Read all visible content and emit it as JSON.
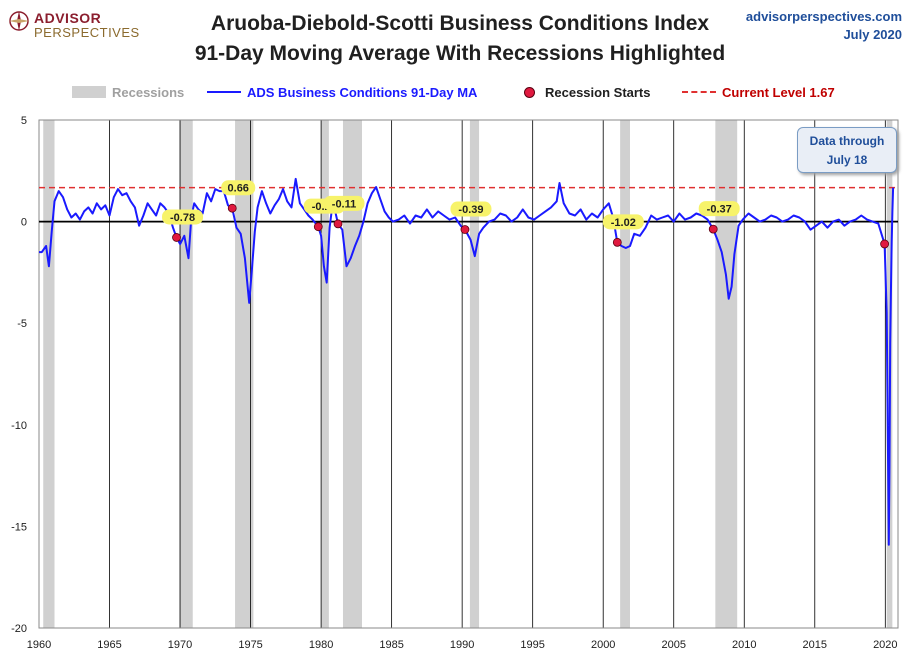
{
  "header": {
    "logo_line1": "ADVISOR",
    "logo_line2": "PERSPECTIVES",
    "title_line1": "Aruoba-Diebold-Scotti Business Conditions Index",
    "title_line2": "91-Day Moving Average With Recessions Highlighted",
    "site": "advisorperspectives.com",
    "date": "July 2020"
  },
  "legend": {
    "recessions": "Recessions",
    "series": "ADS Business Conditions 91-Day MA",
    "starts": "Recession Starts",
    "current": "Current Level 1.67"
  },
  "callout": {
    "line1": "Data through",
    "line2": "July 18"
  },
  "colors": {
    "series": "#1a1aff",
    "recession": "#d0d0d0",
    "current": "#e03030",
    "marker": "#e0193f",
    "label_bg": "#f7f36a"
  },
  "chart_data": {
    "type": "line",
    "xlim": [
      1960,
      2020.9
    ],
    "ylim": [
      -20,
      5
    ],
    "x_ticks": [
      1960,
      1965,
      1970,
      1975,
      1980,
      1985,
      1990,
      1995,
      2000,
      2005,
      2010,
      2015,
      2020
    ],
    "y_ticks": [
      5,
      0,
      -5,
      -10,
      -15,
      -20
    ],
    "current_level": 1.67,
    "recessions": [
      [
        1960.3,
        1961.1
      ],
      [
        1969.95,
        1970.9
      ],
      [
        1973.9,
        1975.2
      ],
      [
        1980.0,
        1980.55
      ],
      [
        1981.55,
        1982.9
      ],
      [
        1990.55,
        1991.2
      ],
      [
        2001.2,
        2001.9
      ],
      [
        2007.95,
        2009.5
      ],
      [
        2020.1,
        2020.5
      ]
    ],
    "recession_starts": [
      {
        "x": 1969.75,
        "y": -0.78,
        "label": "-0.78"
      },
      {
        "x": 1973.7,
        "y": 0.66,
        "label": "0.66"
      },
      {
        "x": 1979.8,
        "y": -0.25,
        "label": "-0.25"
      },
      {
        "x": 1981.2,
        "y": -0.11,
        "label": "-0.11"
      },
      {
        "x": 1990.2,
        "y": -0.39,
        "label": "-0.39"
      },
      {
        "x": 2001.0,
        "y": -1.02,
        "label": "-1.02"
      },
      {
        "x": 2007.8,
        "y": -0.37,
        "label": "-0.37"
      },
      {
        "x": 2019.95,
        "y": -1.1,
        "label": ""
      }
    ],
    "series": [
      {
        "name": "ADS Business Conditions 91-Day MA",
        "x": [
          1960.0,
          1960.2,
          1960.5,
          1960.7,
          1960.9,
          1961.1,
          1961.4,
          1961.7,
          1962.0,
          1962.3,
          1962.6,
          1962.9,
          1963.2,
          1963.5,
          1963.8,
          1964.1,
          1964.4,
          1964.7,
          1965.0,
          1965.3,
          1965.6,
          1965.9,
          1966.2,
          1966.5,
          1966.8,
          1967.1,
          1967.4,
          1967.7,
          1968.0,
          1968.3,
          1968.6,
          1968.9,
          1969.2,
          1969.5,
          1969.75,
          1970.0,
          1970.3,
          1970.6,
          1970.8,
          1971.0,
          1971.3,
          1971.6,
          1971.9,
          1972.2,
          1972.5,
          1972.8,
          1973.1,
          1973.4,
          1973.7,
          1974.0,
          1974.3,
          1974.6,
          1974.9,
          1975.1,
          1975.3,
          1975.5,
          1975.8,
          1976.1,
          1976.4,
          1976.7,
          1977.0,
          1977.3,
          1977.6,
          1977.9,
          1978.2,
          1978.5,
          1978.8,
          1979.1,
          1979.4,
          1979.8,
          1980.0,
          1980.2,
          1980.4,
          1980.6,
          1980.8,
          1981.0,
          1981.2,
          1981.5,
          1981.8,
          1982.1,
          1982.4,
          1982.7,
          1983.0,
          1983.3,
          1983.6,
          1983.9,
          1984.2,
          1984.5,
          1984.8,
          1985.1,
          1985.5,
          1985.9,
          1986.3,
          1986.7,
          1987.1,
          1987.5,
          1987.9,
          1988.3,
          1988.7,
          1989.1,
          1989.5,
          1989.9,
          1990.2,
          1990.6,
          1990.9,
          1991.2,
          1991.5,
          1991.9,
          1992.3,
          1992.7,
          1993.1,
          1993.5,
          1993.9,
          1994.3,
          1994.7,
          1995.1,
          1995.5,
          1995.9,
          1996.3,
          1996.7,
          1996.9,
          1997.2,
          1997.6,
          1998.0,
          1998.4,
          1998.8,
          1999.2,
          1999.6,
          2000.0,
          2000.4,
          2000.7,
          2001.0,
          2001.3,
          2001.6,
          2001.9,
          2002.2,
          2002.6,
          2003.0,
          2003.4,
          2003.8,
          2004.2,
          2004.6,
          2005.0,
          2005.4,
          2005.8,
          2006.2,
          2006.6,
          2007.0,
          2007.4,
          2007.8,
          2008.1,
          2008.4,
          2008.7,
          2008.9,
          2009.1,
          2009.3,
          2009.6,
          2009.9,
          2010.3,
          2010.7,
          2011.1,
          2011.5,
          2011.9,
          2012.3,
          2012.7,
          2013.1,
          2013.5,
          2013.9,
          2014.3,
          2014.7,
          2015.1,
          2015.5,
          2015.9,
          2016.3,
          2016.7,
          2017.1,
          2017.5,
          2017.9,
          2018.3,
          2018.7,
          2019.1,
          2019.5,
          2019.95,
          2020.1,
          2020.2,
          2020.25,
          2020.3,
          2020.35,
          2020.4,
          2020.45,
          2020.5,
          2020.55
        ],
        "y": [
          -1.5,
          -1.5,
          -1.2,
          -2.2,
          -0.5,
          1.0,
          1.5,
          1.2,
          0.6,
          0.2,
          0.4,
          0.1,
          0.5,
          0.7,
          0.4,
          0.9,
          0.6,
          0.8,
          0.3,
          1.2,
          1.6,
          1.3,
          1.4,
          1.0,
          0.7,
          -0.2,
          0.3,
          0.9,
          0.6,
          0.3,
          0.9,
          0.7,
          0.4,
          -0.3,
          -0.78,
          -1.1,
          -0.7,
          -1.8,
          0.2,
          0.9,
          0.6,
          0.4,
          1.4,
          1.0,
          1.6,
          1.5,
          1.5,
          0.8,
          0.66,
          -0.3,
          -0.6,
          -1.8,
          -4.0,
          -2.3,
          -0.5,
          0.7,
          1.5,
          0.9,
          0.4,
          0.8,
          1.1,
          1.6,
          1.0,
          0.7,
          2.1,
          0.9,
          0.6,
          0.3,
          0.1,
          -0.25,
          -0.7,
          -2.2,
          -3.0,
          -0.3,
          0.8,
          0.5,
          -0.11,
          -0.4,
          -2.2,
          -1.8,
          -1.2,
          -0.7,
          0.0,
          0.9,
          1.4,
          1.7,
          1.1,
          0.5,
          0.2,
          0.0,
          0.1,
          0.3,
          -0.1,
          0.3,
          0.2,
          0.6,
          0.2,
          0.5,
          0.3,
          0.1,
          0.2,
          -0.2,
          -0.39,
          -0.9,
          -1.7,
          -0.6,
          -0.3,
          0.0,
          0.1,
          0.4,
          0.3,
          0.0,
          0.2,
          0.6,
          0.2,
          0.1,
          0.3,
          0.5,
          0.7,
          1.0,
          1.9,
          0.9,
          0.4,
          0.3,
          0.6,
          0.1,
          0.4,
          0.2,
          0.6,
          0.9,
          0.2,
          -1.02,
          -1.2,
          -1.3,
          -1.2,
          -0.6,
          -0.7,
          -0.3,
          0.3,
          0.1,
          0.2,
          0.3,
          0.0,
          0.4,
          0.1,
          0.2,
          0.4,
          0.3,
          0.1,
          -0.37,
          -0.9,
          -1.5,
          -2.6,
          -3.8,
          -3.2,
          -1.6,
          -0.2,
          0.1,
          0.4,
          0.2,
          0.0,
          0.1,
          0.3,
          0.2,
          0.0,
          0.1,
          0.3,
          0.2,
          0.0,
          -0.4,
          -0.2,
          0.0,
          -0.3,
          0.0,
          0.1,
          -0.2,
          0.0,
          0.1,
          0.3,
          0.1,
          0.0,
          -0.1,
          -1.1,
          -4.5,
          -12.0,
          -15.9,
          -12.0,
          -6.0,
          -3.5,
          -1.0,
          0.5,
          1.67
        ]
      }
    ]
  }
}
